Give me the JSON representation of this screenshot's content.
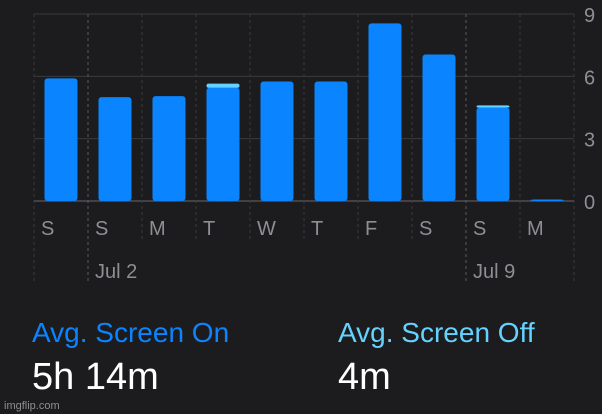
{
  "chart_data": {
    "type": "bar",
    "categories": [
      "S",
      "S",
      "M",
      "T",
      "W",
      "T",
      "F",
      "S",
      "S",
      "M"
    ],
    "series": [
      {
        "values": [
          5.9,
          5.0,
          5.05,
          5.45,
          5.75,
          5.75,
          8.55,
          7.05,
          4.5,
          0.05
        ]
      }
    ],
    "offscreen_values": [
      0,
      0,
      0,
      0.2,
      0,
      0,
      0,
      0,
      0.1,
      0
    ],
    "y_ticks": [
      "0",
      "3",
      "6",
      "9"
    ],
    "ylim": [
      0,
      9
    ],
    "date_labels": [
      {
        "text": "Jul 2",
        "index": 1
      },
      {
        "text": "Jul 9",
        "index": 8
      }
    ],
    "grid": true,
    "colors": {
      "screen_on": "#0a84ff",
      "screen_off": "#64d2ff"
    }
  },
  "stats": {
    "screen_on": {
      "label": "Avg. Screen On",
      "value": "5h 14m"
    },
    "screen_off": {
      "label": "Avg. Screen Off",
      "value": "4m"
    }
  },
  "watermark": "imgflip.com"
}
